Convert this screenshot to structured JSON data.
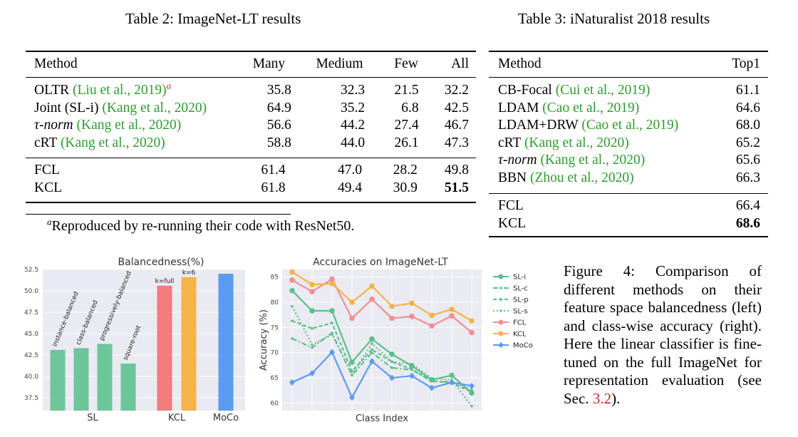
{
  "table2": {
    "caption": "Table 2: ImageNet-LT results",
    "headers": [
      "Method",
      "Many",
      "Medium",
      "Few",
      "All"
    ],
    "rows_group1": [
      {
        "name": "OLTR",
        "cite": "(Liu et al., 2019)",
        "sup": "a",
        "many": "35.8",
        "medium": "32.3",
        "few": "21.5",
        "all": "32.2"
      },
      {
        "name": "Joint (SL-i)",
        "cite": "(Kang et al., 2020)",
        "sup": "",
        "many": "64.9",
        "medium": "35.2",
        "few": "6.8",
        "all": "42.5"
      },
      {
        "name": "τ-norm",
        "cite": "(Kang et al., 2020)",
        "sup": "",
        "many": "56.6",
        "medium": "44.2",
        "few": "27.4",
        "all": "46.7"
      },
      {
        "name": "cRT",
        "cite": "(Kang et al., 2020)",
        "sup": "",
        "many": "58.8",
        "medium": "44.0",
        "few": "26.1",
        "all": "47.3"
      }
    ],
    "rows_group2": [
      {
        "name": "FCL",
        "many": "61.4",
        "medium": "47.0",
        "few": "28.2",
        "all": "49.8",
        "bold_all": false
      },
      {
        "name": "KCL",
        "many": "61.8",
        "medium": "49.4",
        "few": "30.9",
        "all": "51.5",
        "bold_all": true
      }
    ],
    "footnote_mark": "a",
    "footnote": "Reproduced by re-running their code with ResNet50."
  },
  "table3": {
    "caption": "Table 3: iNaturalist 2018 results",
    "headers": [
      "Method",
      "Top1"
    ],
    "rows_group1": [
      {
        "name": "CB-Focal",
        "cite": "(Cui et al., 2019)",
        "top1": "61.1"
      },
      {
        "name": "LDAM",
        "cite": "(Cao et al., 2019)",
        "top1": "64.6"
      },
      {
        "name": "LDAM+DRW",
        "cite": "(Cao et al., 2019)",
        "top1": "68.0"
      },
      {
        "name": "cRT",
        "cite": "(Kang et al., 2020)",
        "top1": "65.2"
      },
      {
        "name": "τ-norm",
        "cite": "(Kang et al., 2020)",
        "top1": "65.6"
      },
      {
        "name": "BBN",
        "cite": "(Zhou et al., 2020)",
        "top1": "66.3"
      }
    ],
    "rows_group2": [
      {
        "name": "FCL",
        "top1": "66.4",
        "bold": false
      },
      {
        "name": "KCL",
        "top1": "68.6",
        "bold": true
      }
    ]
  },
  "figure_caption": {
    "prefix": "Figure 4:   Comparison of different methods on their feature space balancedness (left) and class-wise accuracy (right). Here the linear classifier is fine-tuned on the full ImageNet for representation evaluation (see Sec. ",
    "ref": "3.2",
    "suffix": ")."
  },
  "chart_data": [
    {
      "type": "bar",
      "title": "Balancedness(%)",
      "xlabel": "",
      "ylabel": "",
      "ylim": [
        36.0,
        52.5
      ],
      "yticks": [
        37.5,
        40.0,
        42.5,
        45.0,
        47.5,
        50.0,
        52.5
      ],
      "grid": true,
      "groups": [
        "SL",
        "KCL",
        "MoCo"
      ],
      "bars": [
        {
          "label": "instance-balanced",
          "group": "SL",
          "value": 43.1,
          "color": "#6cc69a"
        },
        {
          "label": "class-balanced",
          "group": "SL",
          "value": 43.3,
          "color": "#6cc69a"
        },
        {
          "label": "progressively-balanced",
          "group": "SL",
          "value": 43.8,
          "color": "#6cc69a"
        },
        {
          "label": "square-root",
          "group": "SL",
          "value": 41.5,
          "color": "#6cc69a"
        },
        {
          "label": "k=full",
          "group": "KCL",
          "value": 50.6,
          "color": "#f27b7b"
        },
        {
          "label": "k=6",
          "group": "KCL",
          "value": 51.6,
          "color": "#f6b34a"
        },
        {
          "label": "",
          "group": "MoCo",
          "value": 52.0,
          "color": "#5b9cf0"
        }
      ]
    },
    {
      "type": "line",
      "title": "Accuracies on ImageNet-LT",
      "xlabel": "Class Index",
      "ylabel": "Accuracy (%)",
      "ylim": [
        58.5,
        86.5
      ],
      "yticks": [
        60,
        65,
        70,
        75,
        80,
        85
      ],
      "x": [
        1,
        2,
        3,
        4,
        5,
        6,
        7,
        8,
        9,
        10
      ],
      "grid": true,
      "legend": "right",
      "series": [
        {
          "name": "SL-i",
          "color": "#5cbf8a",
          "dash": "",
          "marker": "circle",
          "values": [
            82.3,
            78.3,
            78.3,
            68.1,
            72.7,
            69.7,
            67.4,
            64.6,
            65.5,
            62.0
          ]
        },
        {
          "name": "SL-c",
          "color": "#5cbf8a",
          "dash": "7,3,2,3",
          "marker": "dot",
          "values": [
            72.8,
            71.0,
            73.9,
            65.5,
            70.0,
            67.0,
            66.6,
            64.3,
            64.2,
            62.6
          ]
        },
        {
          "name": "SL-p",
          "color": "#5cbf8a",
          "dash": "5,3",
          "marker": "dot",
          "values": [
            76.3,
            74.8,
            75.9,
            66.3,
            70.6,
            68.2,
            66.7,
            64.4,
            64.0,
            62.2
          ]
        },
        {
          "name": "SL-s",
          "color": "#5cbf8a",
          "dash": "2,3",
          "marker": "dot",
          "values": [
            79.2,
            71.6,
            73.6,
            65.6,
            71.8,
            68.2,
            67.7,
            64.9,
            64.6,
            59.4
          ]
        },
        {
          "name": "FCL",
          "color": "#f08f95",
          "dash": "",
          "marker": "circle",
          "values": [
            84.4,
            82.1,
            84.6,
            76.8,
            80.6,
            76.8,
            77.2,
            75.3,
            77.3,
            74.0
          ]
        },
        {
          "name": "KCL",
          "color": "#f6b34a",
          "dash": "",
          "marker": "circle",
          "values": [
            86.0,
            83.5,
            83.7,
            80.0,
            83.2,
            79.2,
            79.8,
            77.4,
            78.6,
            76.3
          ]
        },
        {
          "name": "MoCo",
          "color": "#5b9cf0",
          "dash": "",
          "marker": "diamond",
          "values": [
            64.1,
            65.9,
            70.1,
            61.1,
            68.3,
            65.0,
            65.4,
            63.0,
            64.1,
            63.4
          ]
        }
      ]
    }
  ]
}
